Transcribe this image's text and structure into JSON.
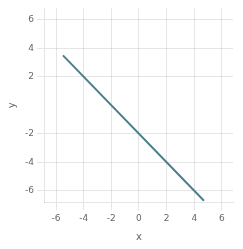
{
  "chart_data": {
    "type": "line",
    "x": [
      -5.5,
      4.7
    ],
    "values": [
      3.5,
      -6.7
    ],
    "color": "#4a7f8a",
    "xlabel": "x",
    "ylabel": "y",
    "xlim": [
      -6.8,
      6.8
    ],
    "ylim": [
      -6.8,
      6.8
    ],
    "xticks": [
      -6,
      -4,
      -2,
      0,
      2,
      4,
      6
    ],
    "yticks": [
      -6,
      -4,
      -2,
      2,
      4,
      6
    ],
    "grid": true
  }
}
